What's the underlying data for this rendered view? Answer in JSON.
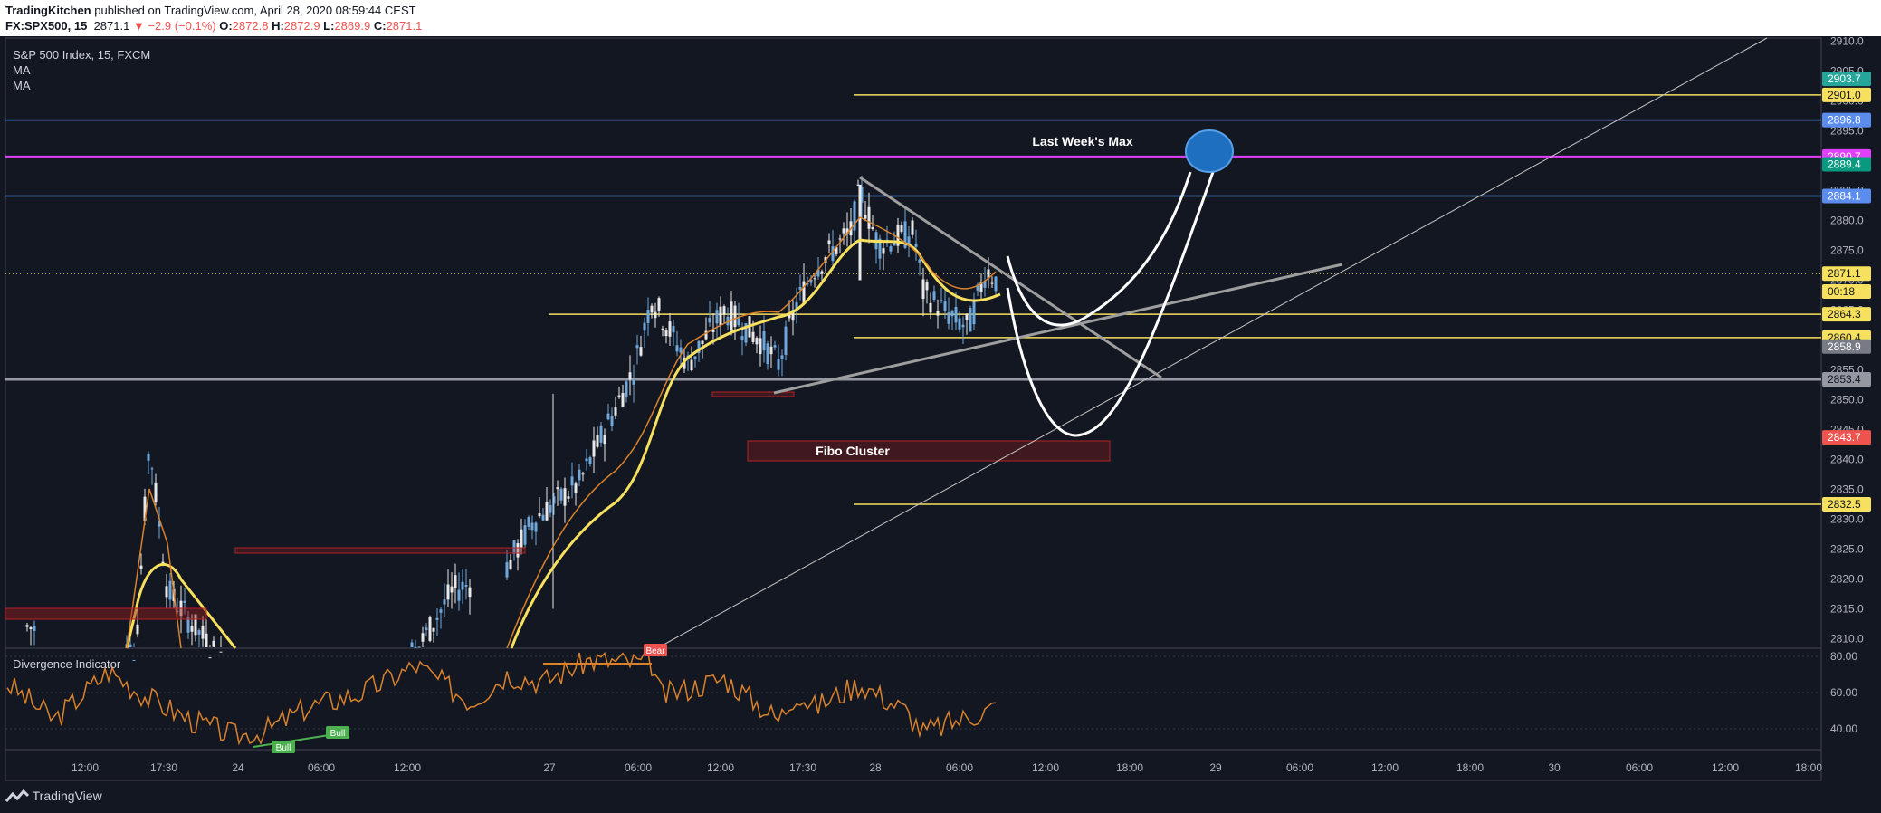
{
  "header": {
    "author": "TradingKitchen",
    "published": "published on TradingView.com, April 28, 2020 08:59:44 CEST",
    "symbol": "FX:SPX500, 15",
    "last": "2871.1",
    "change": "▼ −2.9 (−0.1%)",
    "o_label": "O:",
    "o": "2872.8",
    "h_label": "H:",
    "h": "2872.9",
    "l_label": "L:",
    "l": "2869.9",
    "c_label": "C:",
    "c": "2871.1"
  },
  "legend": {
    "title": "S&P 500 Index, 15, FXCM",
    "ma1": "MA",
    "ma2": "MA",
    "indicator": "Divergence Indicator"
  },
  "footer": {
    "brand": "TradingView"
  },
  "colors": {
    "bg": "#131722",
    "yellow": "#f6e05e",
    "blue": "#5b8def",
    "magenta": "#e040fb",
    "grey": "#9598a1",
    "orange": "#d9822b",
    "candle_up": "#e8e8e8",
    "candle_down": "#6fa8dc"
  },
  "chart_data": [
    {
      "type": "candlestick",
      "title": "S&P 500 Index, 15, FXCM",
      "ylim": [
        2806,
        2910
      ],
      "y_ticks": [
        "2910.0",
        "2905.0",
        "2900.0",
        "2895.0",
        "2890.0",
        "2885.0",
        "2880.0",
        "2875.0",
        "2870.0",
        "2865.0",
        "2860.0",
        "2855.0",
        "2850.0",
        "2845.0",
        "2840.0",
        "2835.0",
        "2830.0",
        "2825.0",
        "2820.0",
        "2815.0",
        "2810.0"
      ],
      "x_ticks": [
        "12:00",
        "17:30",
        "24",
        "06:00",
        "12:00",
        "27",
        "06:00",
        "12:00",
        "17:30",
        "28",
        "06:00",
        "12:00",
        "18:00",
        "29",
        "06:00",
        "12:00",
        "18:00",
        "30",
        "06:00",
        "12:00",
        "18:00"
      ],
      "price_levels": [
        {
          "label": "2903.7",
          "value": 2903.7,
          "color": "#26a69a",
          "line": false
        },
        {
          "label": "2901.0",
          "value": 2901.0,
          "color": "#f6e05e",
          "line": true
        },
        {
          "label": "2896.8",
          "value": 2896.8,
          "color": "#5b8def",
          "line": true
        },
        {
          "label": "2890.7",
          "value": 2890.7,
          "color": "#e040fb",
          "line": true
        },
        {
          "label": "2889.4",
          "value": 2889.4,
          "color": "#089981",
          "line": false
        },
        {
          "label": "2884.1",
          "value": 2884.1,
          "color": "#5b8def",
          "line": true
        },
        {
          "label": "2871.1",
          "value": 2871.1,
          "color": "#f6e05e",
          "line": false
        },
        {
          "label": "00:18",
          "value": 2868.1,
          "color": "#f6e05e",
          "line": false
        },
        {
          "label": "2864.3",
          "value": 2864.3,
          "color": "#f6e05e",
          "line": true
        },
        {
          "label": "2860.4",
          "value": 2860.4,
          "color": "#f6e05e",
          "line": true
        },
        {
          "label": "2858.9",
          "value": 2858.9,
          "color": "#787b86",
          "line": false
        },
        {
          "label": "2853.4",
          "value": 2853.4,
          "color": "#9598a1",
          "line": true
        },
        {
          "label": "2843.7",
          "value": 2843.7,
          "color": "#ef5350",
          "line": false
        },
        {
          "label": "2832.5",
          "value": 2832.5,
          "color": "#f6e05e",
          "line": true
        }
      ],
      "annotations": [
        "Last Week's Max",
        "Fibo Cluster"
      ]
    },
    {
      "type": "line",
      "title": "Divergence Indicator",
      "ylim": [
        30,
        85
      ],
      "y_ticks": [
        "80.00",
        "60.00",
        "40.00"
      ],
      "signals": [
        "Bear",
        "Bull",
        "Bull"
      ]
    }
  ]
}
